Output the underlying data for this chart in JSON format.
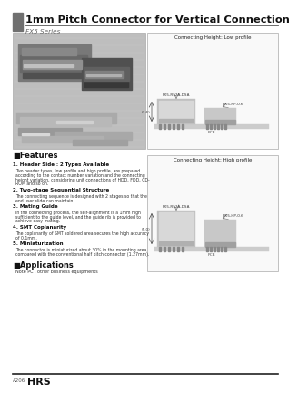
{
  "title": "1mm Pitch Connector for Vertical Connection",
  "subtitle": "FX5 Series",
  "bg_color": "#ffffff",
  "header_bar_color": "#707070",
  "features_title": "Features",
  "features": [
    {
      "num": "1. Header Side : 2 Types Available",
      "text": "Two header types, low profile and high profile, are prepared\naccording to the contact number variation and the connecting\nheight variation, considering unit connections of HDD, FDD, CD-\nROM and so on."
    },
    {
      "num": "2. Two-stage Sequential Structure",
      "text": "The connecting sequence is designed with 2 stages so that the\nend user slide can maintain."
    },
    {
      "num": "3. Mating Guide",
      "text": "In the connecting process, the self-alignment is a 1mm high\nsufficient to the guide level, and the guide rib is provided to\nachieve easy mating."
    },
    {
      "num": "4. SMT Coplanarity",
      "text": "The coplanarity of SMT soldered area secures the high accuracy\nof 0.1mm."
    },
    {
      "num": "5. Miniaturization",
      "text": "The connector is miniaturized about 30% in the mounting area,\ncompared with the conventional half pitch connector (1.27mm)."
    }
  ],
  "applications_title": "Applications",
  "applications_text": "Note PC , other business equipments",
  "low_profile_title": "Connecting Height: Low profile",
  "high_profile_title": "Connecting Height: High profile",
  "footer_page": "A206",
  "footer_brand": "HRS"
}
